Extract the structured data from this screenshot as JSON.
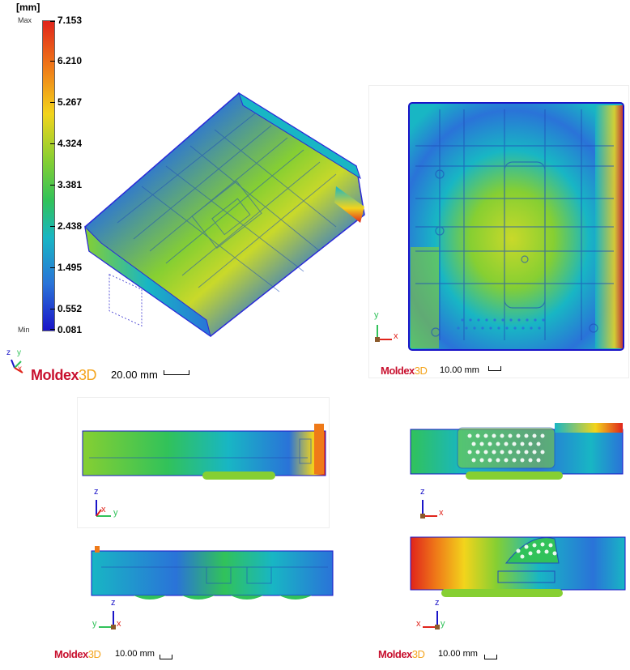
{
  "legend": {
    "unit": "[mm]",
    "max_tag": "Max",
    "min_tag": "Min",
    "ticks": [
      "7.153",
      "6.210",
      "5.267",
      "4.324",
      "3.381",
      "2.438",
      "1.495",
      "0.552",
      "0.081"
    ]
  },
  "brand": {
    "part1": "Moldex",
    "part2": "3D"
  },
  "views": {
    "iso": {
      "scale": "20.00 mm",
      "axes": [
        "z",
        "y",
        "x"
      ]
    },
    "top": {
      "scale": "10.00 mm",
      "axes": [
        "y",
        "x"
      ]
    },
    "side_left": {
      "axes": [
        "z",
        "x",
        "y"
      ]
    },
    "side_right": {
      "axes": [
        "z",
        "x"
      ]
    },
    "side_left_b": {
      "axes": [
        "z",
        "y",
        "x"
      ]
    },
    "side_right_b": {
      "axes": [
        "z",
        "x",
        "y"
      ]
    },
    "bottom_left": {
      "scale": "10.00 mm"
    },
    "bottom_right": {
      "scale": "10.00 mm"
    }
  },
  "colors": {
    "red": "#e0241b",
    "orange": "#ef7a18",
    "yellow": "#f2d41c",
    "green": "#31c25a",
    "cyan": "#18b6c4",
    "blue": "#2a73d8",
    "navy": "#1a14c8"
  }
}
